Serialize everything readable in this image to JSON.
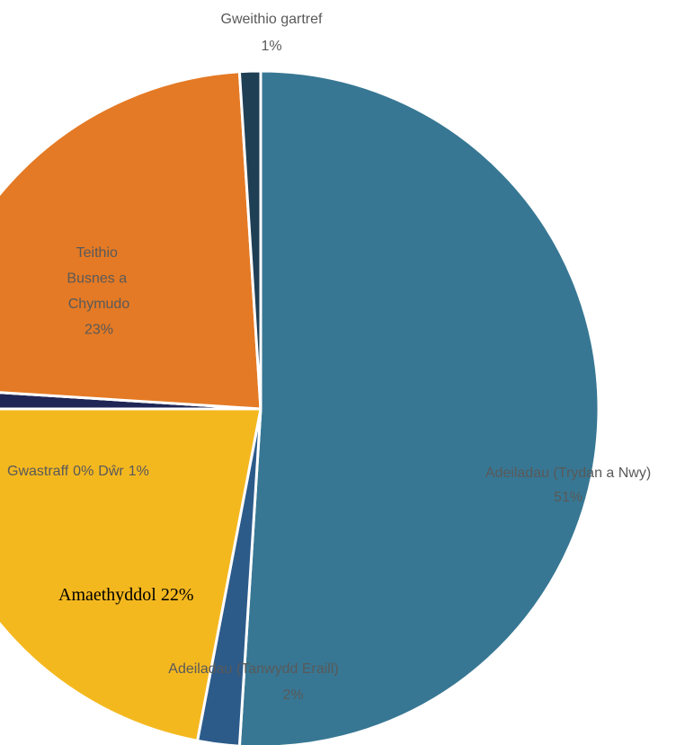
{
  "chart_data": {
    "type": "pie",
    "categories": [
      "Adeiladau (Trydan a Nwy)",
      "Adeiladau (Tanwydd Eraill)",
      "Amaethyddol",
      "Dŵr",
      "Gwastraff",
      "Teithio Busnes a Chymudo",
      "Gweithio gartref"
    ],
    "values": [
      51,
      2,
      22,
      1,
      0,
      23,
      1
    ],
    "value_labels": [
      "51%",
      "2%",
      "22%",
      "1%",
      "0%",
      "23%",
      "1%"
    ],
    "colors": [
      "#377793",
      "#2c5b8a",
      "#f4b81f",
      "#1f2655",
      "#9e9e9e",
      "#e47a25",
      "#1f3f55"
    ]
  }
}
